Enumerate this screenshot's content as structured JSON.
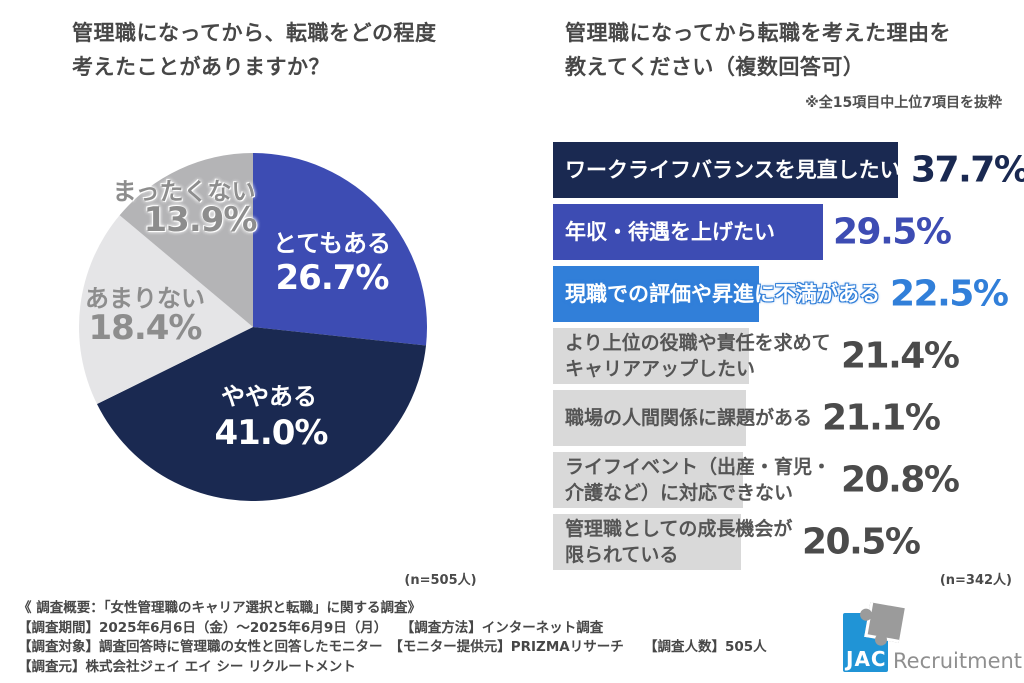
{
  "chart_data": [
    {
      "type": "pie",
      "title": "管理職になってから、転職をどの程度考えたことがありますか？",
      "title_lines": [
        "管理職になってから、転職をどの程度",
        "考えたことがありますか？"
      ],
      "n_label": "(n=505人)",
      "unit": "%",
      "start": "top",
      "direction": "clockwise",
      "categories": [
        "とてもある",
        "ややある",
        "あまりない",
        "まったくない"
      ],
      "values": [
        26.7,
        41.0,
        18.4,
        13.9
      ],
      "slices": [
        {
          "label": "とてもある",
          "value": 26.7,
          "color": "#3d4cb3",
          "text_color": "#ffffff"
        },
        {
          "label": "ややある",
          "value": 41.0,
          "color": "#1a2951",
          "text_color": "#ffffff"
        },
        {
          "label": "あまりない",
          "value": 18.4,
          "color": "#e5e5e7",
          "text_color": "#8d8d8d"
        },
        {
          "label": "まったくない",
          "value": 13.9,
          "color": "#b4b4b6",
          "text_color": "#8d8d8d"
        }
      ]
    },
    {
      "type": "bar",
      "orientation": "horizontal",
      "title": "管理職になってから転職を考えた理由を教えてください（複数回答可）",
      "title_lines": [
        "管理職になってから転職を考えた理由を",
        "教えてください（複数回答可）"
      ],
      "note": "※全15項目中上位7項目を抜粋",
      "n_label": "(n=342人)",
      "unit": "%",
      "xlim": [
        0,
        41
      ],
      "categories": [
        "ワークライフバランスを見直したい",
        "年収・待遇を上げたい",
        "現職での評価や昇進に不満がある",
        "より上位の役職や責任を求めてキャリアアップしたい",
        "職場の人間関係に課題がある",
        "ライフイベント（出産・育児・介護など）に対応できない",
        "管理職としての成長機会が限られている"
      ],
      "values": [
        37.7,
        29.5,
        22.5,
        21.4,
        21.1,
        20.8,
        20.5
      ],
      "bars": [
        {
          "label_lines": [
            "ワークライフバランスを見直したい"
          ],
          "value": 37.7,
          "bar_color": "#1a2951",
          "text_color": "#ffffff",
          "value_color": "#1a2951",
          "outline": false
        },
        {
          "label_lines": [
            "年収・待遇を上げたい"
          ],
          "value": 29.5,
          "bar_color": "#3d4cb3",
          "text_color": "#ffffff",
          "value_color": "#3d4cb3",
          "outline": false
        },
        {
          "label_lines": [
            "現職での評価や昇進に不満がある"
          ],
          "value": 22.5,
          "bar_color": "#317fd9",
          "text_color": "#ffffff",
          "value_color": "#317fd9",
          "outline": true
        },
        {
          "label_lines": [
            "より上位の役職や責任を求めて",
            "キャリアアップしたい"
          ],
          "value": 21.4,
          "bar_color": "#d9d9d9",
          "text_color": "#555555",
          "value_color": "#4b4b4b",
          "outline": false
        },
        {
          "label_lines": [
            "職場の人間関係に課題がある"
          ],
          "value": 21.1,
          "bar_color": "#d9d9d9",
          "text_color": "#555555",
          "value_color": "#4b4b4b",
          "outline": false
        },
        {
          "label_lines": [
            "ライフイベント（出産・育児・",
            "介護など）に対応できない"
          ],
          "value": 20.8,
          "bar_color": "#d9d9d9",
          "text_color": "#555555",
          "value_color": "#4b4b4b",
          "outline": false
        },
        {
          "label_lines": [
            "管理職としての成長機会が",
            "限られている"
          ],
          "value": 20.5,
          "bar_color": "#d9d9d9",
          "text_color": "#555555",
          "value_color": "#4b4b4b",
          "outline": false
        }
      ]
    }
  ],
  "footer": {
    "lines": [
      "《 調査概要：「女性管理職のキャリア選択と転職」に関する調査》",
      "【調査期間】2025年6月6日（金）～2025年6月9日（月）　　【調査方法】インターネット調査",
      "【調査対象】調査回答時に管理職の女性と回答したモニター　【モニター提供元】PRIZMAリサーチ　　【調査人数】505人",
      "【調査元】株式会社ジェイ エイ シー リクルートメント"
    ],
    "logo": {
      "jac": "JAC",
      "recruitment": "Recruitment",
      "blue": "#2094d6",
      "gray": "#9b9b9b"
    }
  }
}
